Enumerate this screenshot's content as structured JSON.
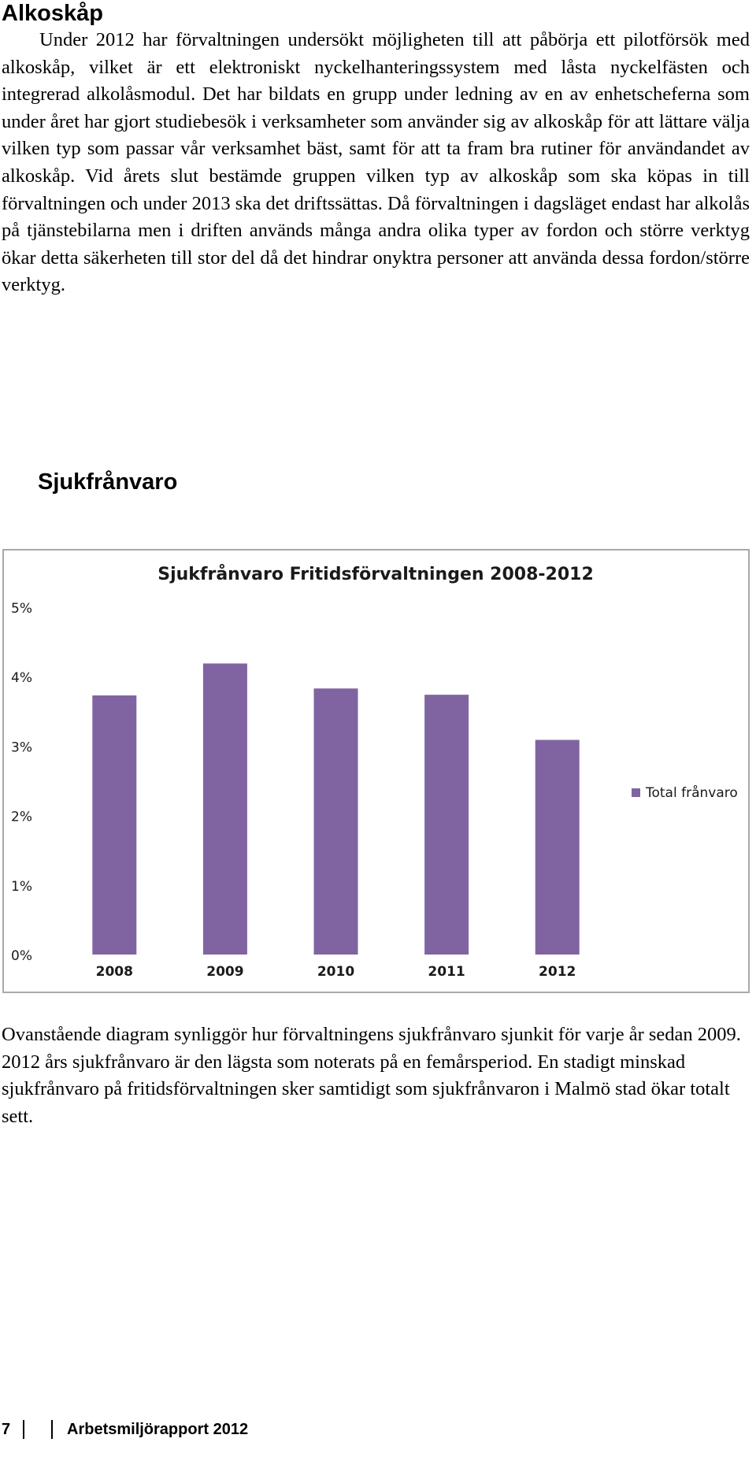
{
  "section1": {
    "heading": "Alkoskåp",
    "body": "Under 2012 har förvaltningen undersökt möjligheten till att påbörja ett pilotförsök med alkoskåp, vilket är ett elektroniskt nyckelhanteringssystem med låsta nyckelfästen och integrerad alkolåsmodul. Det har bildats en grupp under ledning av en av enhetscheferna som under året har gjort studiebesök i verksamheter som använder sig av alkoskåp för att lättare välja vilken typ som passar vår verksamhet bäst, samt för att ta fram bra rutiner för användandet av alkoskåp. Vid årets slut bestämde gruppen vilken typ av alkoskåp som ska köpas in till förvaltningen och under 2013 ska det driftssättas. Då förvaltningen i dagsläget endast har alkolås på tjänstebilarna men i driften används många andra olika typer av fordon och större verktyg ökar detta säkerheten till stor del då det hindrar onyktra personer att använda dessa fordon/större verktyg."
  },
  "section2": {
    "heading": "Sjukfrånvaro",
    "body": "Ovanstående diagram synliggör hur förvaltningens sjukfrånvaro sjunkit för varje år sedan 2009. 2012 års sjukfrånvaro är den lägsta som noterats på en femårsperiod. En stadigt minskad sjukfrånvaro på fritidsförvaltningen sker samtidigt som sjukfrånvaron i Malmö stad ökar totalt sett."
  },
  "chart_data": {
    "type": "bar",
    "title": "Sjukfrånvaro Fritidsförvaltningen 2008-2012",
    "categories": [
      "2008",
      "2009",
      "2010",
      "2011",
      "2012"
    ],
    "series": [
      {
        "name": "Total frånvaro",
        "values": [
          3.73,
          4.19,
          3.83,
          3.74,
          3.09
        ]
      }
    ],
    "yticks": [
      "0%",
      "1%",
      "2%",
      "3%",
      "4%",
      "5%"
    ],
    "ylim": [
      0,
      5
    ],
    "xlabel": "",
    "ylabel": "",
    "grid": false,
    "legend": "right",
    "bar_color": "#8064a2"
  },
  "footer": {
    "page_number": "7",
    "title": "Arbetsmiljörapport 2012"
  }
}
